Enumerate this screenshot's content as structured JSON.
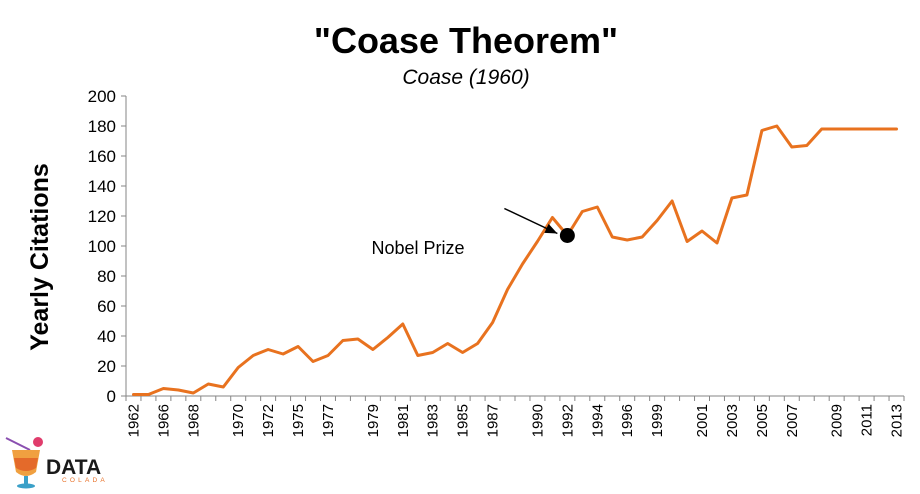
{
  "chart_data": {
    "type": "line",
    "title": "\"Coase Theorem\"",
    "subtitle": "Coase (1960)",
    "ylabel": "Yearly Citations",
    "xlabel": "",
    "ylim": [
      0,
      200
    ],
    "yticks": [
      0,
      20,
      40,
      60,
      80,
      100,
      120,
      140,
      160,
      180,
      200
    ],
    "xtick_labels": [
      "1962",
      "1966",
      "1968",
      "1970",
      "1972",
      "1975",
      "1977",
      "1979",
      "1981",
      "1983",
      "1985",
      "1987",
      "1990",
      "1992",
      "1994",
      "1996",
      "1999",
      "2001",
      "2003",
      "2005",
      "2007",
      "2009",
      "2011",
      "2013"
    ],
    "line_color": "#e8721f",
    "grid": false,
    "series": [
      {
        "x": [
          1962,
          1963,
          1964,
          1965,
          1966,
          1967,
          1968,
          1969,
          1970,
          1971,
          1972,
          1973,
          1974,
          1975,
          1976,
          1977,
          1978,
          1979,
          1980,
          1981,
          1982,
          1983,
          1984,
          1985,
          1986,
          1987,
          1988,
          1989,
          1990,
          1991,
          1992,
          1993,
          1994,
          1995,
          1996,
          1997,
          1998,
          1999,
          2000,
          2001,
          2002,
          2003,
          2004,
          2005,
          2006,
          2007,
          2008,
          2009,
          2010,
          2011,
          2012,
          2013
        ],
        "values": [
          1,
          1,
          5,
          4,
          2,
          8,
          6,
          19,
          27,
          31,
          28,
          33,
          23,
          27,
          37,
          38,
          31,
          39,
          48,
          27,
          29,
          35,
          29,
          35,
          49,
          71,
          88,
          103,
          119,
          107,
          123,
          126,
          106,
          104,
          106,
          117,
          130,
          103,
          110,
          102,
          132,
          134,
          177,
          180,
          166,
          167,
          178,
          178,
          178,
          178,
          178,
          178
        ]
      }
    ],
    "annotations": [
      {
        "label": "Nobel Prize",
        "index": 29,
        "marker_color": "#000000"
      }
    ]
  },
  "logo": {
    "text": "DATA",
    "subtext": "COLADA"
  }
}
